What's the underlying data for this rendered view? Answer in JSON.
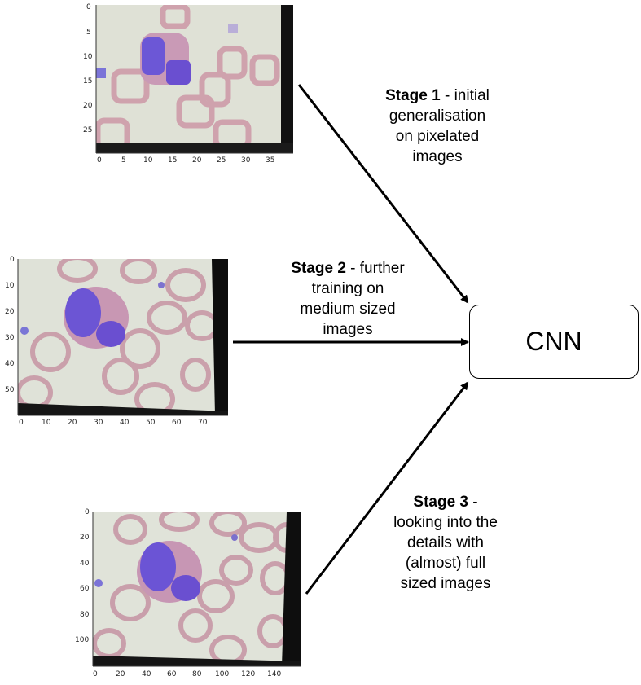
{
  "cnn_label": "CNN",
  "stages": [
    {
      "bold": "Stage 1",
      "rest_lines": [
        " - initial",
        "generalisation",
        "on pixelated",
        "images"
      ]
    },
    {
      "bold": "Stage 2",
      "rest_lines": [
        " - further",
        "training on",
        "medium sized",
        "images"
      ]
    },
    {
      "bold": "Stage 3",
      "rest_lines": [
        " -",
        "looking into the",
        "details with",
        "(almost) full",
        "sized images"
      ]
    }
  ],
  "plot1": {
    "x_ticks": [
      "0",
      "5",
      "10",
      "15",
      "20",
      "25",
      "30",
      "35"
    ],
    "y_ticks": [
      "0",
      "5",
      "10",
      "15",
      "20",
      "25"
    ]
  },
  "plot2": {
    "x_ticks": [
      "0",
      "10",
      "20",
      "30",
      "40",
      "50",
      "60",
      "70"
    ],
    "y_ticks": [
      "0",
      "10",
      "20",
      "30",
      "40",
      "50"
    ]
  },
  "plot3": {
    "x_ticks": [
      "0",
      "20",
      "40",
      "60",
      "80",
      "100",
      "120",
      "140"
    ],
    "y_ticks": [
      "0",
      "20",
      "40",
      "60",
      "80",
      "100"
    ]
  },
  "colors": {
    "cell_nucleus": "#6a4fd0",
    "rbc": "#c89aa6",
    "background": "#dfe2d8",
    "arrow": "#000000"
  }
}
